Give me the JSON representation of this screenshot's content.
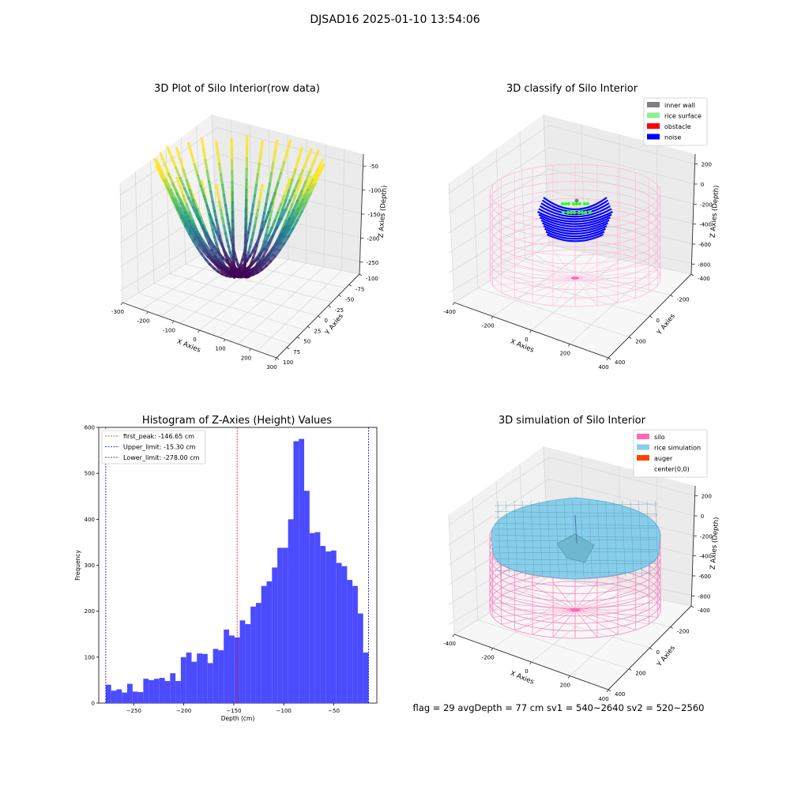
{
  "figure": {
    "suptitle": "DJSAD16 2025-01-10 13:54:06",
    "footer": "flag = 29  avgDepth = 77 cm    sv1 = 540~2640  sv2 = 520~2560"
  },
  "chart_data": [
    {
      "type": "scatter",
      "subtype": "3d",
      "title": "3D Plot of Silo Interior(row data)",
      "xlabel": "X Axies",
      "ylabel": "Y Axies",
      "zlabel": "Z Axies (Depth)",
      "xlim": [
        -300,
        300
      ],
      "ylim": [
        -100,
        100
      ],
      "zlim": [
        -280,
        -30
      ],
      "x_ticks": [
        "-300",
        "-200",
        "-100",
        "0",
        "100",
        "200",
        "300"
      ],
      "y_ticks": [
        "-100",
        "-75",
        "-50",
        "-25",
        "0",
        "25",
        "50",
        "75",
        "100"
      ],
      "z_ticks": [
        "-50",
        "-100",
        "-150",
        "-200",
        "-250"
      ],
      "colormap": "viridis",
      "colormap_stops": [
        "#440154",
        "#3b528b",
        "#21918c",
        "#5ec962",
        "#fde725"
      ],
      "arc_count": 34,
      "depth_range": [
        -278,
        -15.3
      ]
    },
    {
      "type": "scatter",
      "subtype": "3d",
      "title": "3D classify of Silo Interior",
      "xlabel": "X Axies",
      "ylabel": "Y Axies",
      "zlabel": "Z Axies (Depth)",
      "xlim": [
        -500,
        500
      ],
      "ylim": [
        -500,
        500
      ],
      "zlim": [
        -800,
        300
      ],
      "x_ticks": [
        "-400",
        "-200",
        "0",
        "200",
        "400"
      ],
      "y_ticks": [
        "-400",
        "-200",
        "0",
        "200",
        "400"
      ],
      "z_ticks": [
        "200",
        "0",
        "-200",
        "-400",
        "-600",
        "-800"
      ],
      "legend": {
        "loc": "upper right",
        "entries": [
          {
            "label": "inner wall",
            "color": "#808080"
          },
          {
            "label": "rice surface",
            "color": "#90ee90"
          },
          {
            "label": "obstacle",
            "color": "#ff0000"
          },
          {
            "label": "noise",
            "color": "#0000ff"
          }
        ]
      },
      "wireframe_color": "#ffb6d9"
    },
    {
      "type": "bar",
      "subtype": "histogram",
      "title": "Histogram of Z-Axies (Height) Values",
      "xlabel": "Depth (cm)",
      "ylabel": "Frequency",
      "xlim": [
        -285,
        -7
      ],
      "ylim": [
        0,
        600
      ],
      "x_ticks": [
        -250,
        -200,
        -150,
        -100,
        -50
      ],
      "y_ticks": [
        0,
        100,
        200,
        300,
        400,
        500,
        600
      ],
      "bar_color": "#4b4bff",
      "bin_start": -278.0,
      "bin_end": -15.3,
      "values": [
        40,
        27,
        30,
        23,
        42,
        25,
        24,
        53,
        50,
        53,
        55,
        48,
        65,
        48,
        100,
        110,
        90,
        108,
        107,
        87,
        118,
        115,
        160,
        147,
        143,
        180,
        172,
        210,
        218,
        255,
        265,
        295,
        338,
        338,
        400,
        570,
        575,
        462,
        370,
        372,
        342,
        330,
        332,
        305,
        298,
        268,
        255,
        195,
        110
      ],
      "vlines": [
        {
          "label": "first_peak: -146.65 cm",
          "x": -146.65,
          "color": "#ff0000"
        },
        {
          "label": "Upper_limit: -15.30 cm",
          "x": -15.3,
          "color": "#0000cc"
        },
        {
          "label": "Lower_limit: -278.00 cm",
          "x": -278.0,
          "color": "#0000cc"
        }
      ],
      "legend_loc": "upper left"
    },
    {
      "type": "area",
      "subtype": "3d-surface",
      "title": "3D simulation of Silo Interior",
      "xlabel": "X Axies",
      "ylabel": "Y Axies",
      "zlabel": "Z Axies (Depth)",
      "xlim": [
        -500,
        500
      ],
      "ylim": [
        -500,
        500
      ],
      "zlim": [
        -800,
        300
      ],
      "x_ticks": [
        "-400",
        "-200",
        "0",
        "200",
        "400"
      ],
      "y_ticks": [
        "-400",
        "-200",
        "0",
        "200",
        "400"
      ],
      "z_ticks": [
        "200",
        "0",
        "-200",
        "-400",
        "-600",
        "-800"
      ],
      "legend": {
        "loc": "upper right",
        "entries": [
          {
            "label": "silo",
            "color": "#ff69b4"
          },
          {
            "label": "rice simulation",
            "color": "#87ceeb"
          },
          {
            "label": "auger",
            "color": "#ff4500"
          },
          {
            "label": "center(0,0)",
            "color": "#ffffff"
          }
        ]
      },
      "wireframe_color": "#ff80c0",
      "surface_color": "#87ceeb"
    }
  ]
}
